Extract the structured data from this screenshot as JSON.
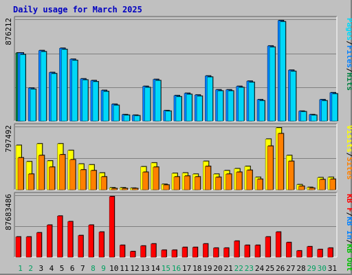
{
  "title": "Daily usage for March 2025",
  "colors": {
    "background": "#c0c0c0",
    "panel": "#c0c0c0",
    "grid": "#808080",
    "title": "#0000c0",
    "pages": "#00d8f8",
    "files": "#0080ff",
    "hits": "#008040",
    "visits": "#ffff00",
    "sites": "#ff8000",
    "kb_f": "#ff0000",
    "kb_in": "#0080ff",
    "kb_out": "#00c000",
    "sep": "#000000",
    "weekday": "#000000",
    "weekend": "#00a060"
  },
  "chart_data": [
    {
      "type": "bar",
      "panel": "hits-files-pages",
      "ymax_label": "876212",
      "legend": [
        {
          "text": "Pages",
          "color_key": "pages"
        },
        {
          "text": "/",
          "color_key": "sep"
        },
        {
          "text": "Files",
          "color_key": "files"
        },
        {
          "text": "/",
          "color_key": "sep"
        },
        {
          "text": "Hits",
          "color_key": "hits"
        }
      ],
      "categories": [
        "1",
        "2",
        "3",
        "4",
        "5",
        "6",
        "7",
        "8",
        "9",
        "10",
        "11",
        "12",
        "13",
        "14",
        "15",
        "16",
        "17",
        "18",
        "19",
        "20",
        "21",
        "22",
        "23",
        "24",
        "25",
        "26",
        "27",
        "28",
        "29",
        "30",
        "31"
      ],
      "series": [
        {
          "name": "Hits",
          "color_key": "hits",
          "values": [
            590000,
            0,
            0,
            0,
            0,
            0,
            0,
            0,
            0,
            0,
            0,
            0,
            0,
            0,
            0,
            0,
            0,
            0,
            0,
            0,
            0,
            0,
            0,
            0,
            0,
            0,
            0,
            0,
            0,
            0,
            0
          ]
        },
        {
          "name": "Files",
          "color_key": "files",
          "values": [
            590000,
            285000,
            610000,
            420000,
            630000,
            535000,
            365000,
            350000,
            265000,
            145000,
            55000,
            50000,
            300000,
            360000,
            90000,
            220000,
            240000,
            225000,
            390000,
            270000,
            270000,
            300000,
            345000,
            185000,
            650000,
            870000,
            440000,
            85000,
            55000,
            185000,
            245000
          ]
        },
        {
          "name": "Pages",
          "color_key": "pages",
          "values": [
            575000,
            275000,
            600000,
            410000,
            620000,
            525000,
            355000,
            340000,
            255000,
            135000,
            50000,
            45000,
            290000,
            350000,
            85000,
            210000,
            230000,
            215000,
            380000,
            260000,
            260000,
            290000,
            335000,
            175000,
            640000,
            860000,
            430000,
            80000,
            50000,
            175000,
            235000
          ]
        }
      ]
    },
    {
      "type": "bar",
      "panel": "visits-sites",
      "ymax_label": "797492",
      "legend": [
        {
          "text": "Visits",
          "color_key": "visits"
        },
        {
          "text": "/",
          "color_key": "sep"
        },
        {
          "text": "Sites",
          "color_key": "sites"
        }
      ],
      "categories": [
        "1",
        "2",
        "3",
        "4",
        "5",
        "6",
        "7",
        "8",
        "9",
        "10",
        "11",
        "12",
        "13",
        "14",
        "15",
        "16",
        "17",
        "18",
        "19",
        "20",
        "21",
        "22",
        "23",
        "24",
        "25",
        "26",
        "27",
        "28",
        "29",
        "30",
        "31"
      ],
      "series": [
        {
          "name": "Visits",
          "color_key": "visits",
          "values": [
            570000,
            360000,
            590000,
            370000,
            590000,
            505000,
            330000,
            320000,
            215000,
            25000,
            25000,
            20000,
            295000,
            345000,
            70000,
            210000,
            215000,
            200000,
            365000,
            200000,
            245000,
            270000,
            300000,
            160000,
            650000,
            795000,
            440000,
            65000,
            30000,
            155000,
            160000
          ]
        },
        {
          "name": "Sites",
          "color_key": "sites",
          "values": [
            410000,
            200000,
            440000,
            290000,
            450000,
            385000,
            255000,
            245000,
            165000,
            15000,
            15000,
            15000,
            225000,
            290000,
            60000,
            165000,
            175000,
            165000,
            300000,
            160000,
            200000,
            225000,
            250000,
            135000,
            560000,
            720000,
            365000,
            45000,
            20000,
            130000,
            135000
          ]
        }
      ]
    },
    {
      "type": "bar",
      "panel": "kbytes",
      "ymax_label": "87683486",
      "legend": [
        {
          "text": "KB F",
          "color_key": "kb_f"
        },
        {
          "text": "/",
          "color_key": "sep"
        },
        {
          "text": "KB In",
          "color_key": "kb_in"
        },
        {
          "text": "/",
          "color_key": "sep"
        },
        {
          "text": "KB Out",
          "color_key": "kb_out"
        }
      ],
      "categories": [
        "1",
        "2",
        "3",
        "4",
        "5",
        "6",
        "7",
        "8",
        "9",
        "10",
        "11",
        "12",
        "13",
        "14",
        "15",
        "16",
        "17",
        "18",
        "19",
        "20",
        "21",
        "22",
        "23",
        "24",
        "25",
        "26",
        "27",
        "28",
        "29",
        "30",
        "31"
      ],
      "series": [
        {
          "name": "KB F",
          "color_key": "kb_f",
          "values": [
            29000000,
            29000000,
            35000000,
            46000000,
            59000000,
            51000000,
            31000000,
            46000000,
            36000000,
            87000000,
            17000000,
            8000000,
            16000000,
            19000000,
            10000000,
            10000000,
            14000000,
            14000000,
            19000000,
            13000000,
            13000000,
            23000000,
            17000000,
            17000000,
            29000000,
            36000000,
            21000000,
            9000000,
            15000000,
            11000000,
            13000000
          ]
        }
      ]
    }
  ]
}
